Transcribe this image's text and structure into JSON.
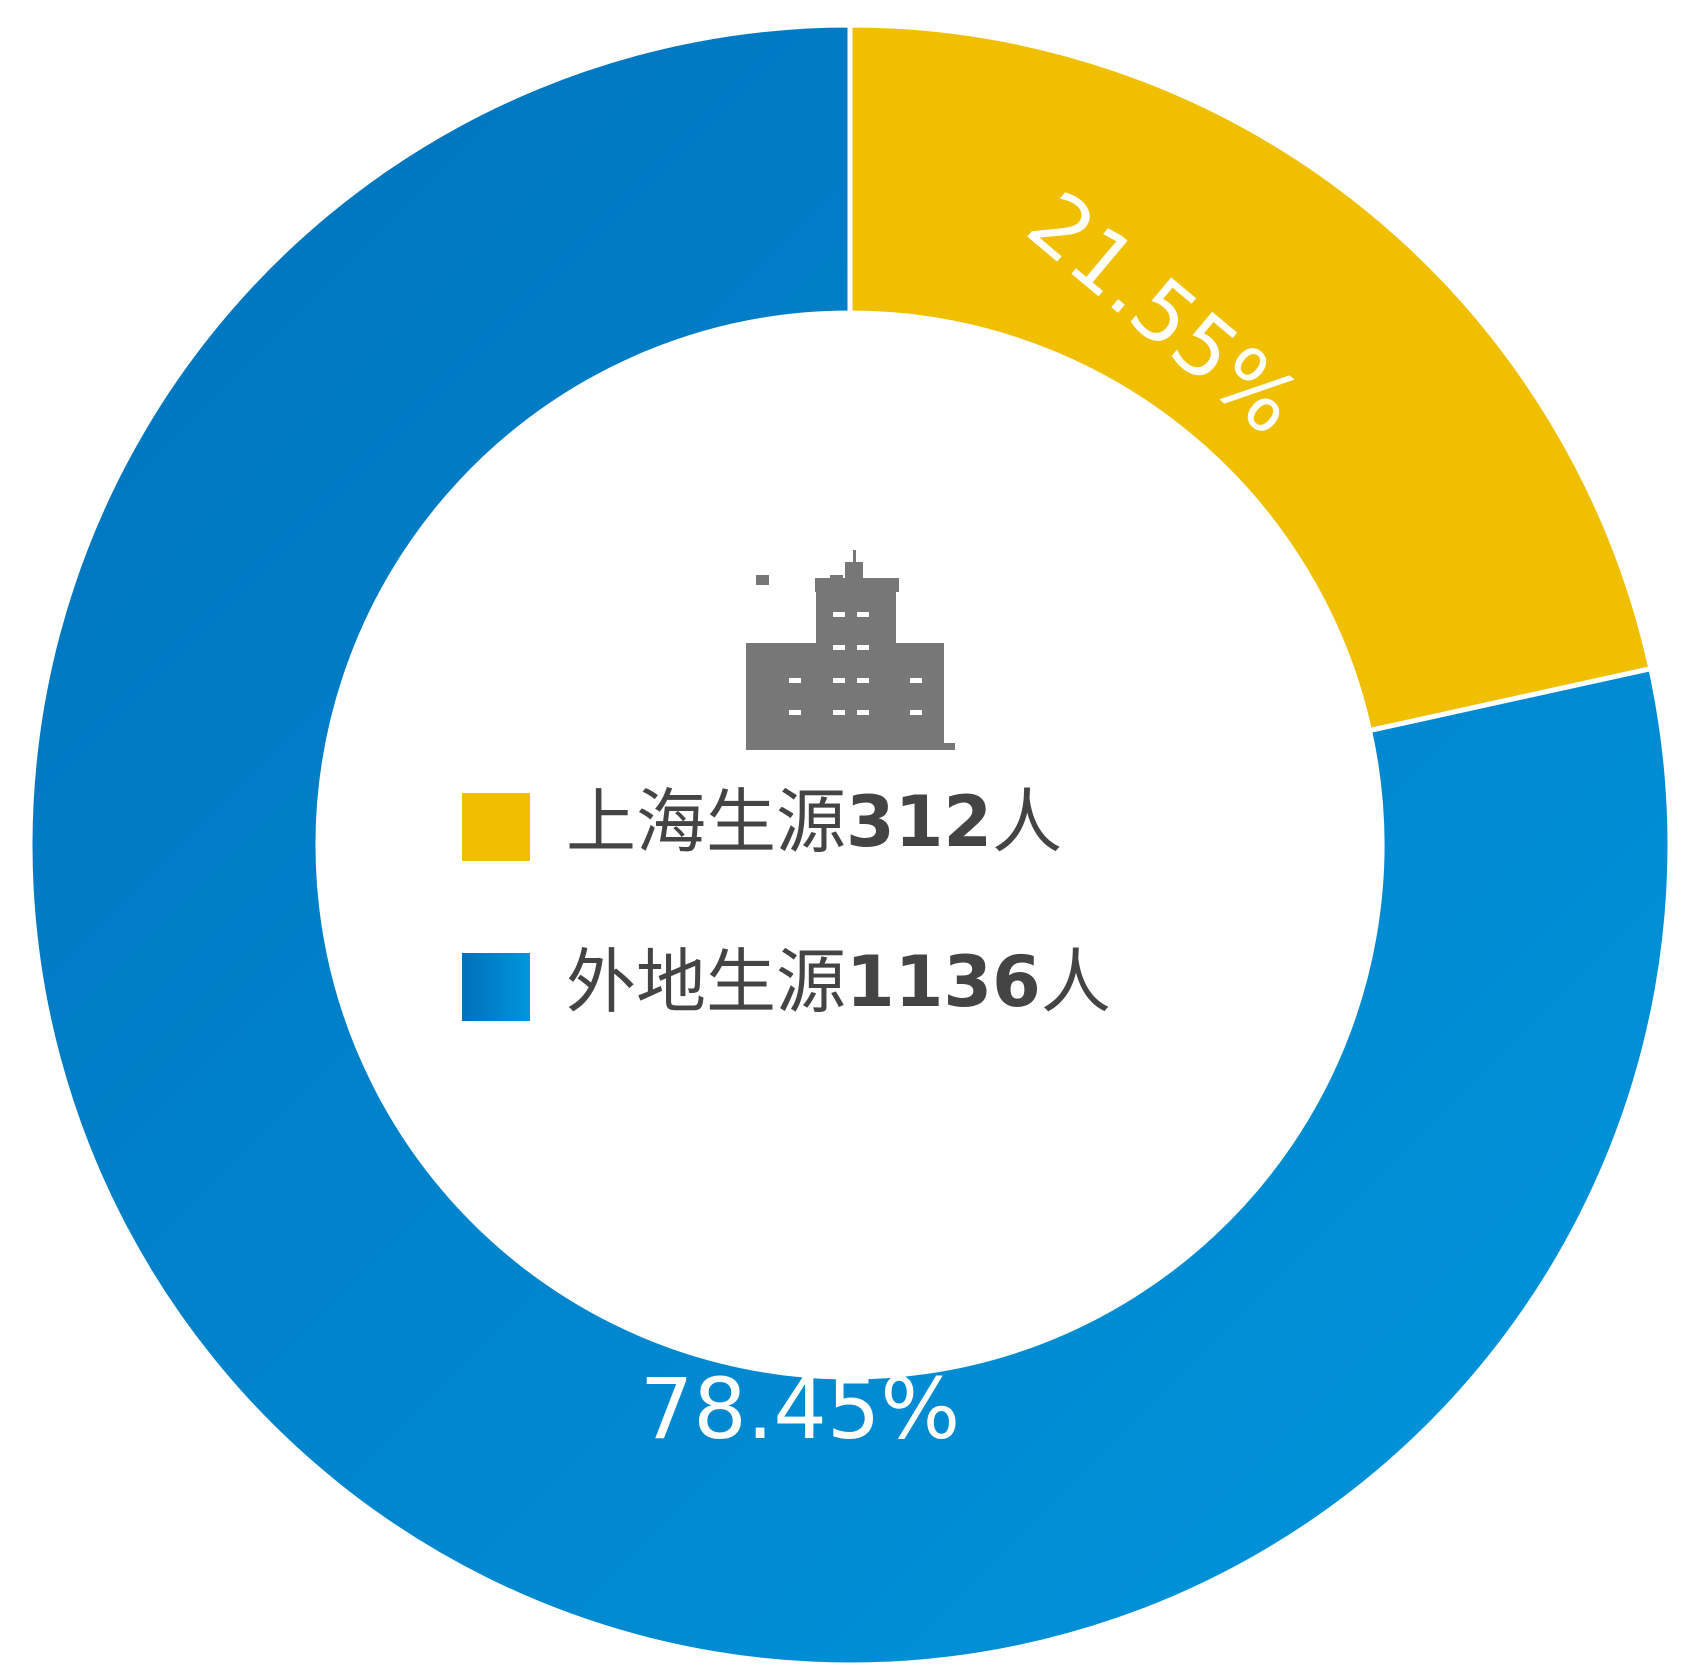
{
  "chart_data": {
    "type": "donut",
    "categories": [
      "上海生源",
      "外地生源"
    ],
    "counts": [
      312,
      1136
    ],
    "unit": "人",
    "values": [
      21.55,
      78.45
    ],
    "value_labels": [
      "21.55%",
      "78.45%"
    ],
    "colors": [
      "#f0bf00",
      "#0084cc"
    ]
  }
}
